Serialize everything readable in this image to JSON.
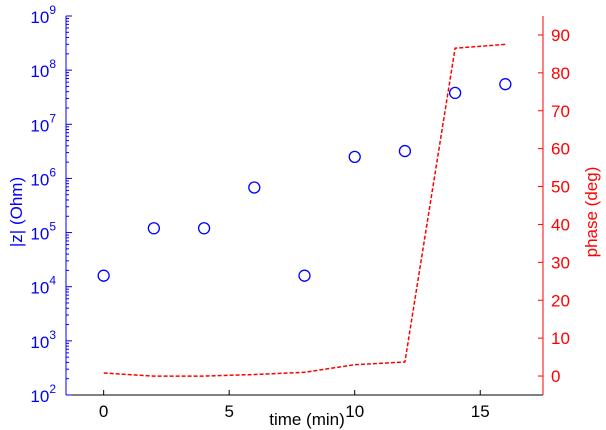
{
  "chart_data": {
    "type": "scatter+line",
    "xlabel": "time (min)",
    "ylabel_left": "|z| (Ohm)",
    "ylabel_right": "phase (deg)",
    "xlim": [
      -1.5,
      17.5
    ],
    "ylim_left": [
      100,
      1000000000
    ],
    "ylim_right": [
      -5,
      95
    ],
    "y_left_scale": "log",
    "x_ticks": [
      0,
      5,
      10,
      15
    ],
    "y_left_ticks": [
      {
        "base": "10",
        "exp": "2",
        "value": 100
      },
      {
        "base": "10",
        "exp": "3",
        "value": 1000
      },
      {
        "base": "10",
        "exp": "4",
        "value": 10000
      },
      {
        "base": "10",
        "exp": "5",
        "value": 100000
      },
      {
        "base": "10",
        "exp": "6",
        "value": 1000000
      },
      {
        "base": "10",
        "exp": "7",
        "value": 10000000
      },
      {
        "base": "10",
        "exp": "8",
        "value": 100000000
      },
      {
        "base": "10",
        "exp": "9",
        "value": 1000000000
      }
    ],
    "y_right_ticks": [
      0,
      10,
      20,
      30,
      40,
      50,
      60,
      70,
      80,
      90
    ],
    "colors": {
      "left": "#0000ff",
      "right": "#ff0000",
      "axis": "#000000"
    },
    "impedance": {
      "marker": "circle",
      "color": "#0000ff",
      "x": [
        0,
        2,
        4,
        6,
        8,
        10,
        12,
        14,
        16
      ],
      "y": [
        16000,
        120000,
        120000,
        680000,
        16000,
        2500000,
        3200000,
        38000000,
        55000000
      ]
    },
    "phase": {
      "style": "dashed",
      "color": "#ff0000",
      "x": [
        0,
        2,
        4,
        6,
        8,
        10,
        12,
        14,
        16
      ],
      "y": [
        0.8,
        0.0,
        0.0,
        0.4,
        1.0,
        3.0,
        3.7,
        86.5,
        87.5
      ]
    }
  }
}
